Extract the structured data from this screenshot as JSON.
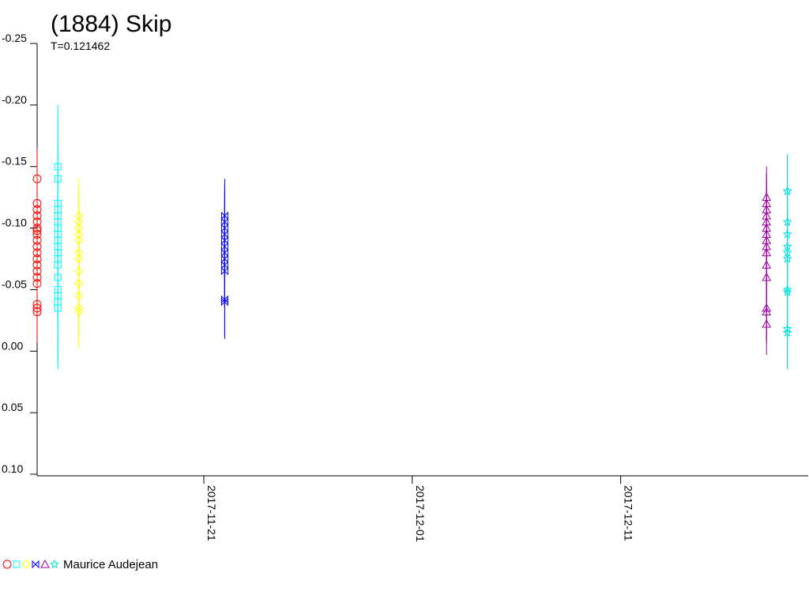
{
  "chart_data": {
    "type": "scatter",
    "title": "(1884) Skip",
    "subtitle": "T=0.121462",
    "observer": "Maurice Audejean",
    "ylim": [
      -0.25,
      0.1
    ],
    "yticks": [
      -0.25,
      {
        "value": -0.2,
        "label": "-0.20"
      },
      -0.15,
      {
        "value": -0.1,
        "label": "-0.10"
      },
      -0.05,
      {
        "value": 0,
        "label": "0.00"
      },
      0.05,
      {
        "value": 0.1,
        "label": "0.10"
      }
    ],
    "xlim": [
      "2017-11-13",
      "2017-12-20"
    ],
    "xticks": [
      "2017-11-21",
      "2017-12-01",
      "2017-12-11"
    ],
    "series": [
      {
        "color": "#ff0000",
        "marker": "circle",
        "x": "2017-11-13",
        "error": 0.025,
        "values": [
          -0.14,
          -0.12,
          -0.115,
          -0.11,
          -0.105,
          -0.1,
          -0.098,
          -0.095,
          -0.09,
          -0.085,
          -0.08,
          -0.075,
          -0.07,
          -0.065,
          -0.06,
          -0.055,
          -0.038,
          -0.035,
          -0.032
        ]
      },
      {
        "color": "#00ffff",
        "marker": "square",
        "x": "2017-11-14",
        "error": 0.05,
        "values": [
          -0.15,
          -0.14,
          -0.12,
          -0.115,
          -0.11,
          -0.105,
          -0.1,
          -0.095,
          -0.09,
          -0.085,
          -0.08,
          -0.075,
          -0.07,
          -0.06,
          -0.05,
          -0.045,
          -0.04,
          -0.035
        ]
      },
      {
        "color": "#ffff00",
        "marker": "diamond",
        "x": "2017-11-15",
        "error": 0.03,
        "values": [
          -0.11,
          -0.105,
          -0.1,
          -0.095,
          -0.09,
          -0.08,
          -0.075,
          -0.065,
          -0.055,
          -0.045,
          -0.035,
          -0.032
        ]
      },
      {
        "color": "#0000ff",
        "marker": "bowtie",
        "x": "2017-11-22",
        "error": 0.03,
        "values": [
          -0.11,
          -0.105,
          -0.1,
          -0.095,
          -0.09,
          -0.085,
          -0.08,
          -0.075,
          -0.07,
          -0.065,
          -0.042,
          -0.04
        ]
      },
      {
        "color": "#a000a0",
        "marker": "triangle",
        "x": "2017-12-18",
        "error": 0.025,
        "values": [
          -0.125,
          -0.12,
          -0.115,
          -0.11,
          -0.105,
          -0.1,
          -0.095,
          -0.09,
          -0.085,
          -0.08,
          -0.07,
          -0.06,
          -0.035,
          -0.032,
          -0.022
        ]
      },
      {
        "color": "#00e0e0",
        "marker": "star",
        "x": "2017-12-19",
        "error": 0.03,
        "values": [
          -0.13,
          -0.13,
          -0.105,
          -0.095,
          -0.085,
          -0.08,
          -0.075,
          -0.05,
          -0.048,
          -0.018,
          -0.015
        ]
      }
    ]
  }
}
